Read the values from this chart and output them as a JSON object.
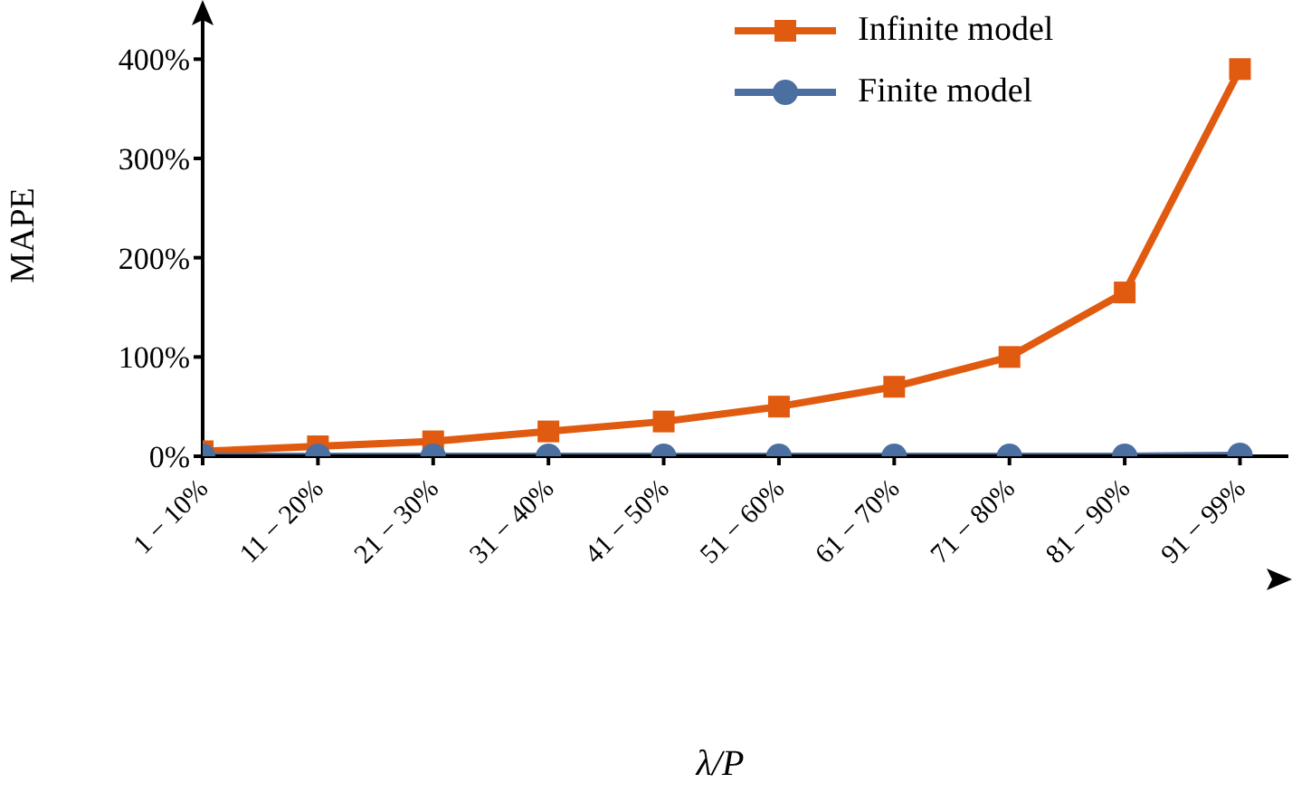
{
  "chart_data": {
    "type": "line",
    "xlabel": "λ/P",
    "ylabel": "MAPE",
    "categories": [
      "1 − 10%",
      "11 − 20%",
      "21 − 30%",
      "31 − 40%",
      "41 − 50%",
      "51 − 60%",
      "61 − 70%",
      "71 − 80%",
      "81 − 90%",
      "91 − 99%"
    ],
    "series": [
      {
        "name": "Infinite model",
        "color": "#e05a10",
        "marker": "square",
        "values": [
          5,
          10,
          15,
          25,
          35,
          50,
          70,
          100,
          165,
          390
        ]
      },
      {
        "name": "Finite model",
        "color": "#4a6fa0",
        "marker": "circle",
        "values": [
          0,
          0,
          0,
          0,
          0,
          0,
          0,
          0,
          0,
          1
        ]
      }
    ],
    "ylim": [
      0,
      445
    ],
    "yticks": [
      {
        "value": 0,
        "label": "0%"
      },
      {
        "value": 100,
        "label": "100%"
      },
      {
        "value": 200,
        "label": "200%"
      },
      {
        "value": 300,
        "label": "300%"
      },
      {
        "value": 400,
        "label": "400%"
      }
    ],
    "grid": false,
    "legend": "top right",
    "line_style": "solid"
  }
}
